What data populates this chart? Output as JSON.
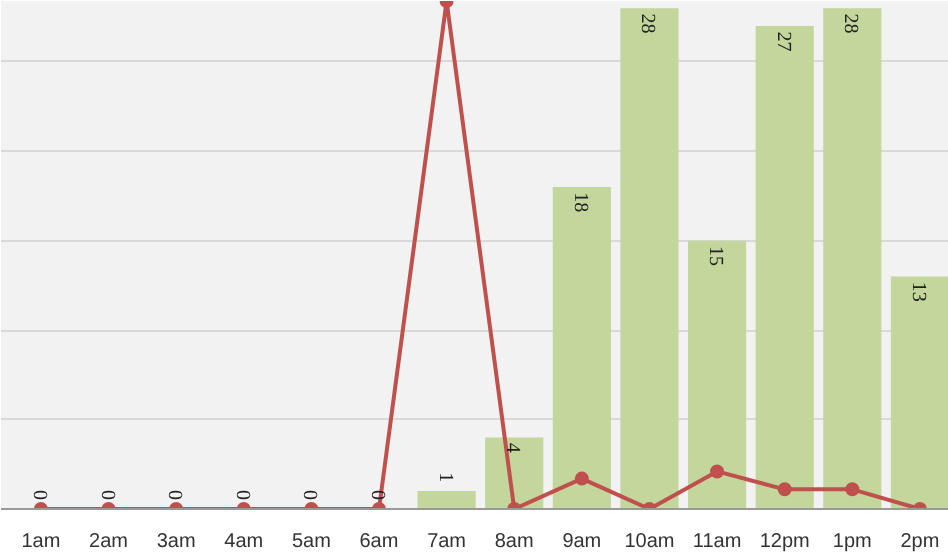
{
  "chart_data": {
    "type": "bar",
    "categories": [
      "1am",
      "2am",
      "3am",
      "4am",
      "5am",
      "6am",
      "7am",
      "8am",
      "9am",
      "10am",
      "11am",
      "12pm",
      "1pm",
      "2pm"
    ],
    "series": [
      {
        "color": "#c3d69b",
        "values": [
          0,
          0,
          0,
          0,
          0,
          0,
          1,
          4,
          18,
          28,
          15,
          27,
          28,
          13
        ],
        "value_labels": [
          "0",
          "0",
          "0",
          "0",
          "0",
          "0",
          "1",
          "4",
          "18",
          "28",
          "15",
          "27",
          "28",
          "13"
        ]
      },
      {
        "type": "line",
        "color": "#c0504d",
        "values": [
          0,
          0,
          0,
          0,
          0,
          0,
          28.4,
          0,
          1.7,
          0,
          2.1,
          1.1,
          1.1,
          0
        ],
        "marker": "circle",
        "line_style": "solid"
      }
    ],
    "ylim": [
      0,
      28.4
    ],
    "yticks": [
      {
        "value": 0,
        "label": null
      },
      {
        "value": 5,
        "label": null
      },
      {
        "value": 10,
        "label": null
      },
      {
        "value": 15,
        "label": null
      },
      {
        "value": 20,
        "label": null
      },
      {
        "value": 25,
        "label": null
      }
    ],
    "tick_labels": "x",
    "grid": "y"
  }
}
